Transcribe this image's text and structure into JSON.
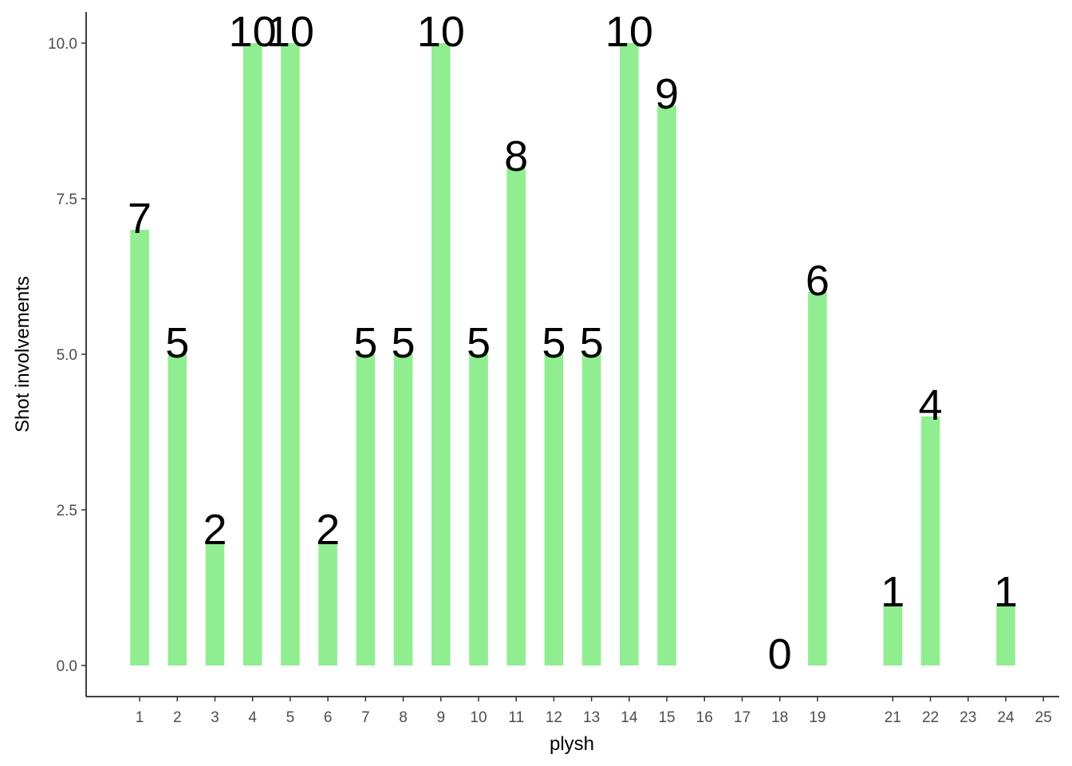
{
  "chart_data": {
    "type": "bar",
    "xlabel": "plysh",
    "ylabel": "Shot involvements",
    "x": [
      1,
      2,
      3,
      4,
      5,
      6,
      7,
      8,
      9,
      10,
      11,
      12,
      13,
      14,
      15,
      18,
      19,
      21,
      22,
      24
    ],
    "values": [
      7,
      5,
      2,
      10,
      10,
      2,
      5,
      5,
      10,
      5,
      8,
      5,
      5,
      10,
      9,
      0,
      6,
      1,
      4,
      1
    ],
    "color": "#90ee90",
    "xlim": [
      -0.42,
      25.42
    ],
    "xticks": [
      1,
      2,
      3,
      4,
      5,
      6,
      7,
      8,
      9,
      10,
      11,
      12,
      13,
      14,
      15,
      16,
      17,
      18,
      19,
      21,
      22,
      23,
      24,
      25
    ],
    "ylim": [
      -0.5,
      10.5
    ],
    "yticks": [
      {
        "value": 0,
        "label": "0.0"
      },
      {
        "value": 2.5,
        "label": "2.5"
      },
      {
        "value": 5,
        "label": "5.0"
      },
      {
        "value": 7.5,
        "label": "7.5"
      },
      {
        "value": 10,
        "label": "10.0"
      }
    ],
    "grid": false
  }
}
